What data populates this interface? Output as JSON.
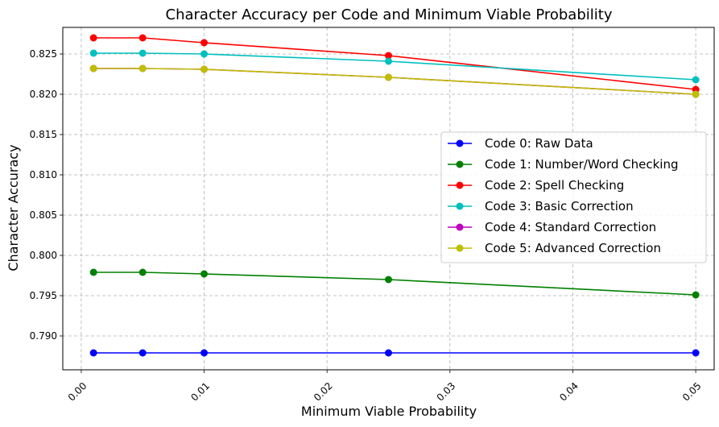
{
  "chart_data": {
    "type": "line",
    "title": "Character Accuracy per Code and Minimum Viable Probability",
    "xlabel": "Minimum Viable Probability",
    "ylabel": "Character Accuracy",
    "x": [
      0.001,
      0.005,
      0.01,
      0.025,
      0.05
    ],
    "xlim": [
      -0.0015,
      0.0515
    ],
    "ylim": [
      0.7858,
      0.8283
    ],
    "xticks": [
      0.0,
      0.01,
      0.02,
      0.03,
      0.04,
      0.05
    ],
    "xtick_labels": [
      "0.00",
      "0.01",
      "0.02",
      "0.03",
      "0.04",
      "0.05"
    ],
    "yticks": [
      0.79,
      0.795,
      0.8,
      0.805,
      0.81,
      0.815,
      0.82,
      0.825
    ],
    "ytick_labels": [
      "0.790",
      "0.795",
      "0.800",
      "0.805",
      "0.810",
      "0.815",
      "0.820",
      "0.825"
    ],
    "grid": true,
    "legend_position": "center-right",
    "series": [
      {
        "name": "Code 0: Raw Data",
        "color": "#0000ff",
        "values": [
          0.7879,
          0.7879,
          0.7879,
          0.7879,
          0.7879
        ]
      },
      {
        "name": "Code 1: Number/Word Checking",
        "color": "#008000",
        "values": [
          0.7979,
          0.7979,
          0.7977,
          0.797,
          0.7951
        ]
      },
      {
        "name": "Code 2: Spell Checking",
        "color": "#ff0000",
        "values": [
          0.827,
          0.827,
          0.8264,
          0.8248,
          0.8206
        ]
      },
      {
        "name": "Code 3: Basic Correction",
        "color": "#00bfbf",
        "values": [
          0.8251,
          0.8251,
          0.825,
          0.8241,
          0.8218
        ]
      },
      {
        "name": "Code 4: Standard Correction",
        "color": "#bf00bf",
        "values": [
          0.8232,
          0.8232,
          0.8231,
          0.8221,
          0.82
        ]
      },
      {
        "name": "Code 5: Advanced Correction",
        "color": "#bfbf00",
        "values": [
          0.8232,
          0.8232,
          0.8231,
          0.8221,
          0.82
        ]
      }
    ]
  }
}
